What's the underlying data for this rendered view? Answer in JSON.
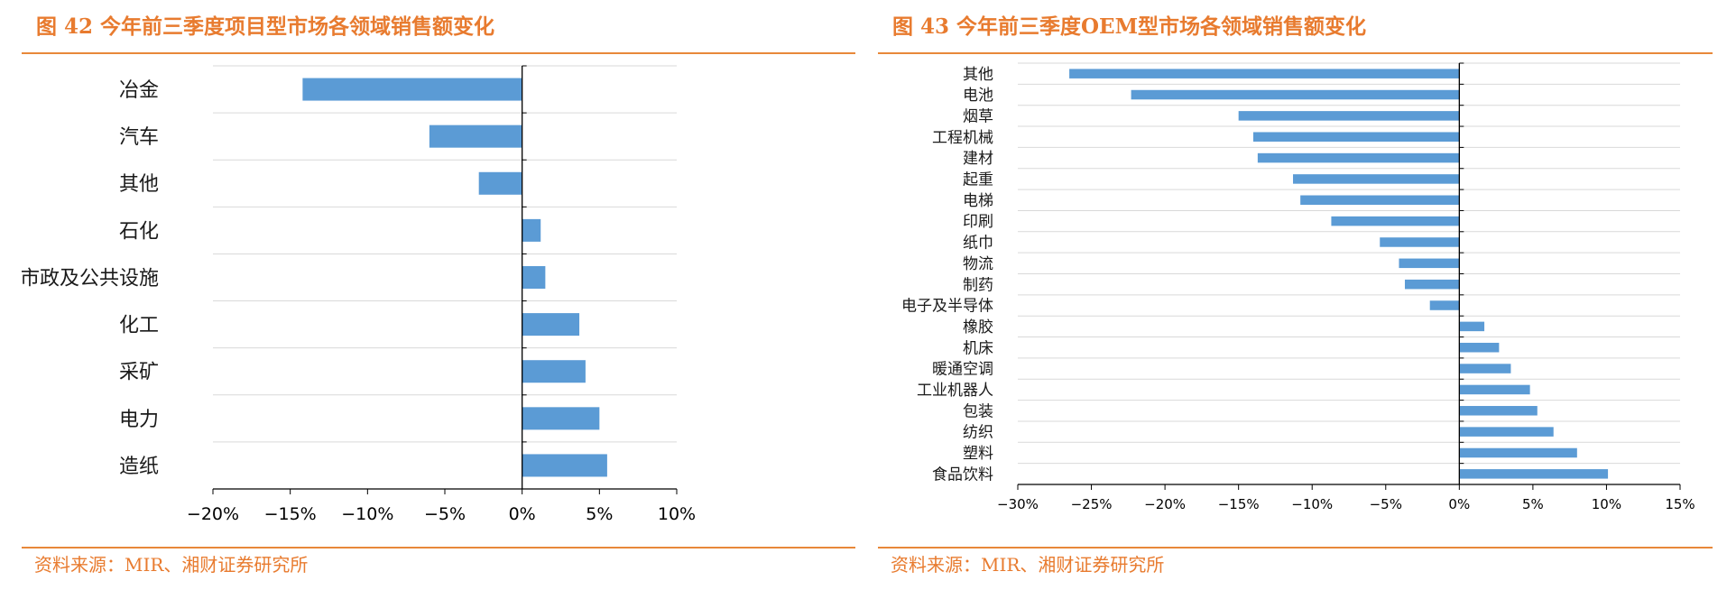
{
  "charts": [
    {
      "title": "图 42 今年前三季度项目型市场各领域销售额变化",
      "source": "资料来源：MIR、湘财证券研究所"
    },
    {
      "title": "图 43 今年前三季度OEM型市场各领域销售额变化",
      "source": "资料来源：MIR、湘财证券研究所"
    }
  ],
  "chart_data": [
    {
      "type": "bar",
      "orientation": "horizontal",
      "title": "图 42 今年前三季度项目型市场各领域销售额变化",
      "categories": [
        "冶金",
        "汽车",
        "其他",
        "石化",
        "市政及公共设施",
        "化工",
        "采矿",
        "电力",
        "造纸"
      ],
      "values": [
        -14.2,
        -6.0,
        -2.8,
        1.2,
        1.5,
        3.7,
        4.1,
        5.0,
        5.5
      ],
      "xlim": [
        -20,
        10
      ],
      "xticks": [
        "−20%",
        "−15%",
        "−10%",
        "−5%",
        "0%",
        "5%",
        "10%"
      ],
      "tick_values": [
        -20,
        -15,
        -10,
        -5,
        0,
        5,
        10
      ],
      "xlabel": "",
      "ylabel": "",
      "grid": true,
      "bar_color": "#5B9BD5"
    },
    {
      "type": "bar",
      "orientation": "horizontal",
      "title": "图 43 今年前三季度OEM型市场各领域销售额变化",
      "categories": [
        "其他",
        "电池",
        "烟草",
        "工程机械",
        "建材",
        "起重",
        "电梯",
        "印刷",
        "纸巾",
        "物流",
        "制药",
        "电子及半导体",
        "橡胶",
        "机床",
        "暖通空调",
        "工业机器人",
        "包装",
        "纺织",
        "塑料",
        "食品饮料"
      ],
      "values": [
        -26.5,
        -22.3,
        -15.0,
        -14.0,
        -13.7,
        -11.3,
        -10.8,
        -8.7,
        -5.4,
        -4.1,
        -3.7,
        -2.0,
        1.7,
        2.7,
        3.5,
        4.8,
        5.3,
        6.4,
        8.0,
        10.1
      ],
      "xlim": [
        -30,
        15
      ],
      "xticks": [
        "−30%",
        "−25%",
        "−20%",
        "−15%",
        "−10%",
        "−5%",
        "0%",
        "5%",
        "10%",
        "15%"
      ],
      "tick_values": [
        -30,
        -25,
        -20,
        -15,
        -10,
        -5,
        0,
        5,
        10,
        15
      ],
      "xlabel": "",
      "ylabel": "",
      "grid": true,
      "bar_color": "#5B9BD5"
    }
  ]
}
